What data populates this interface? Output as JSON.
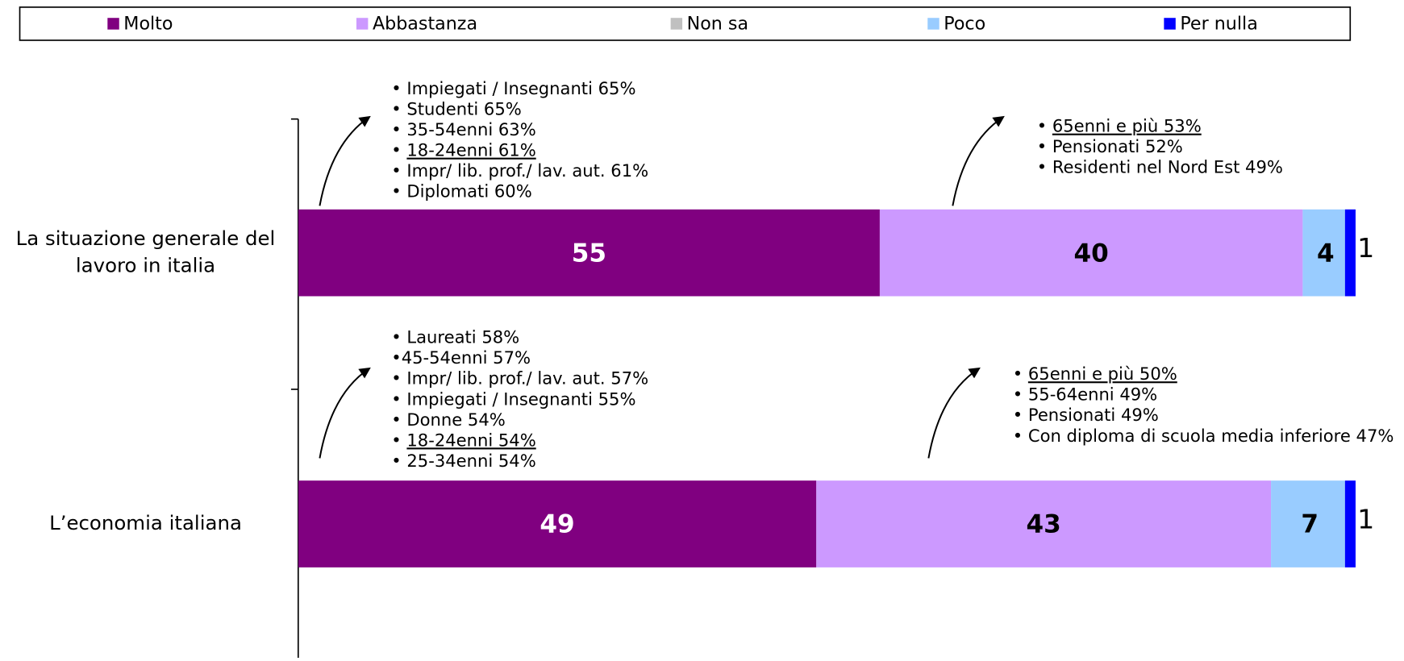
{
  "chart_data": {
    "type": "stacked-bar-horizontal",
    "categories": [
      "La situazione generale del lavoro in italia",
      "L’economia italiana"
    ],
    "series": [
      {
        "name": "Molto",
        "color": "#800080",
        "values": [
          55,
          49
        ]
      },
      {
        "name": "Abbastanza",
        "color": "#cc99ff",
        "values": [
          40,
          43
        ]
      },
      {
        "name": "Non sa",
        "color": "#c0c0c0",
        "values": [
          0,
          0
        ]
      },
      {
        "name": "Poco",
        "color": "#99ccff",
        "values": [
          4,
          7
        ]
      },
      {
        "name": "Per nulla",
        "color": "#0000ff",
        "values": [
          1,
          1
        ]
      }
    ],
    "xlim": [
      0,
      100
    ],
    "legend": "top",
    "annotations": [
      {
        "lines": [
          {
            "text": "• Impiegati / Insegnanti 65%"
          },
          {
            "text": "• Studenti 65%"
          },
          {
            "text": "• 35-54enni 63%"
          },
          {
            "text": "• 18-24enni 61%",
            "underline": true
          },
          {
            "text": "• Impr/ lib. prof./ lav. aut. 61%"
          },
          {
            "text": "• Diplomati 60%"
          }
        ]
      },
      {
        "lines": [
          {
            "text": "• 65enni e più 53%",
            "underline": true
          },
          {
            "text": "• Pensionati 52%"
          },
          {
            "text": "• Residenti nel Nord Est 49%"
          }
        ]
      },
      {
        "lines": [
          {
            "text": "• Laureati 58%"
          },
          {
            "text": "•45-54enni 57%"
          },
          {
            "text": "• Impr/ lib. prof./ lav. aut. 57%"
          },
          {
            "text": "• Impiegati / Insegnanti 55%"
          },
          {
            "text": "• Donne 54%"
          },
          {
            "text": "• 18-24enni 54%",
            "underline": true
          },
          {
            "text": "• 25-34enni 54%"
          }
        ]
      },
      {
        "lines": [
          {
            "text": "• 65enni e più 50%",
            "underline": true
          },
          {
            "text": "• 55-64enni 49%"
          },
          {
            "text": "• Pensionati 49%"
          },
          {
            "text": "• Con diploma di scuola media inferiore 47%"
          }
        ]
      }
    ]
  }
}
